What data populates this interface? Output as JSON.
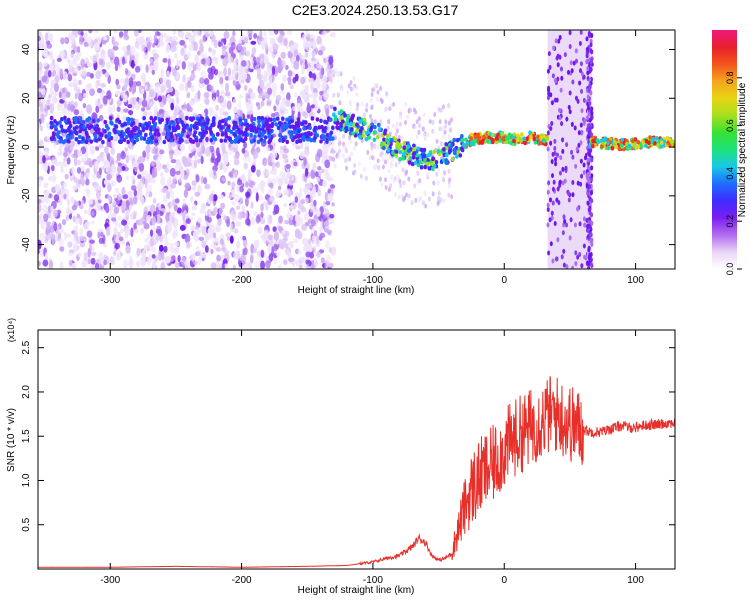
{
  "title": "C2E3.2024.250.13.53.G17",
  "chart_data": [
    {
      "type": "heatmap",
      "xlabel": "Height of straight line (km)",
      "ylabel": "Frequency (Hz)",
      "xlim": [
        -355,
        130
      ],
      "ylim": [
        -50,
        48
      ],
      "x_ticks": [
        -300,
        -200,
        -100,
        0,
        100
      ],
      "y_ticks": [
        -40,
        -20,
        0,
        20,
        40
      ],
      "colorbar": {
        "label": "Normalized spectral amplitude",
        "range": [
          0,
          1
        ],
        "ticks": [
          "0.0",
          "0.2",
          "0.4",
          "0.6",
          "0.8"
        ],
        "colors": [
          "#ffffff",
          "#e9d5f7",
          "#b26bf0",
          "#7a1ff0",
          "#3d2bff",
          "#1f6cff",
          "#19c8e6",
          "#1ee27a",
          "#37e233",
          "#a6e01e",
          "#e8d414",
          "#f5a51d",
          "#f2541c",
          "#e8202a",
          "#ee1780"
        ]
      },
      "ridge": [
        {
          "x": -130,
          "y": 12
        },
        {
          "x": -110,
          "y": 8
        },
        {
          "x": -95,
          "y": 5
        },
        {
          "x": -85,
          "y": 0
        },
        {
          "x": -75,
          "y": -2
        },
        {
          "x": -65,
          "y": -4
        },
        {
          "x": -55,
          "y": -6
        },
        {
          "x": -45,
          "y": -3
        },
        {
          "x": -35,
          "y": 0
        },
        {
          "x": -25,
          "y": 3
        },
        {
          "x": -10,
          "y": 4
        },
        {
          "x": 0,
          "y": 4
        },
        {
          "x": 10,
          "y": 3
        },
        {
          "x": 20,
          "y": 4
        },
        {
          "x": 30,
          "y": 3
        },
        {
          "x": 70,
          "y": 2
        },
        {
          "x": 90,
          "y": 1
        },
        {
          "x": 110,
          "y": 2
        },
        {
          "x": 128,
          "y": 2
        }
      ],
      "vertical_bands": [
        {
          "x_from": 33,
          "x_to": 65
        },
        {
          "x_from": 63,
          "x_to": 67
        }
      ],
      "grid": false
    },
    {
      "type": "line",
      "xlabel": "Height of straight line (km)",
      "ylabel": "SNR (10 * v/v)",
      "y_multiplier": "(x10⁴)",
      "xlim": [
        -355,
        130
      ],
      "ylim": [
        0,
        2.7
      ],
      "x_ticks": [
        -300,
        -200,
        -100,
        0,
        100
      ],
      "y_ticks": [
        0.5,
        1.0,
        1.5,
        2.0,
        2.5
      ],
      "y_tick_labels": [
        "0.5",
        "1.0",
        "1.5",
        "2.0",
        "2.5"
      ],
      "series": [
        {
          "color": "#e8302a",
          "x": [
            -355,
            -300,
            -250,
            -200,
            -150,
            -120,
            -100,
            -90,
            -80,
            -70,
            -65,
            -60,
            -55,
            -50,
            -45,
            -40,
            -35,
            -30,
            -25,
            -20,
            -15,
            -10,
            -5,
            0,
            5,
            10,
            15,
            20,
            25,
            30,
            35,
            40,
            45,
            50,
            55,
            60,
            65,
            70,
            75,
            80,
            85,
            90,
            95,
            100,
            105,
            110,
            115,
            120,
            125,
            130
          ],
          "values": [
            0.02,
            0.02,
            0.03,
            0.02,
            0.03,
            0.04,
            0.08,
            0.12,
            0.15,
            0.25,
            0.35,
            0.3,
            0.15,
            0.1,
            0.12,
            0.18,
            0.45,
            0.7,
            0.9,
            1.0,
            1.1,
            1.15,
            1.25,
            1.35,
            1.45,
            1.5,
            1.55,
            1.6,
            1.65,
            1.7,
            1.75,
            1.75,
            1.7,
            1.65,
            1.6,
            1.58,
            1.55,
            1.55,
            1.55,
            1.58,
            1.6,
            1.62,
            1.6,
            1.6,
            1.62,
            1.63,
            1.63,
            1.64,
            1.65,
            1.65
          ]
        }
      ],
      "grid": false
    }
  ]
}
